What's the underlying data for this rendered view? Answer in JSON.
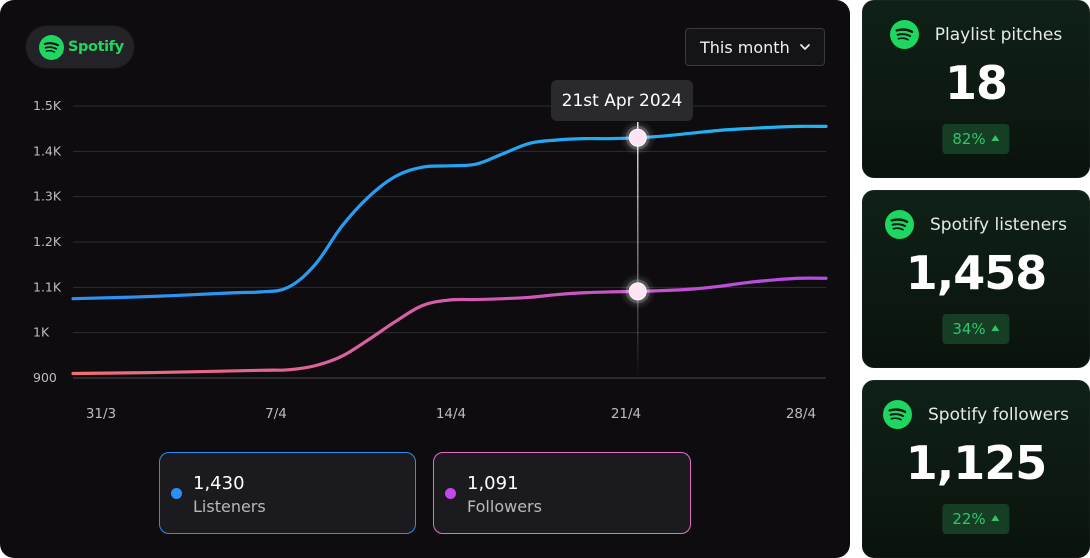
{
  "brand": {
    "name": "Spotify",
    "color": "#1ed760",
    "icon": "spotify-logo-icon"
  },
  "period_select": {
    "value": "This month",
    "icon": "chevron-down-icon"
  },
  "tooltip": {
    "label": "21st Apr 2024"
  },
  "colors": {
    "listeners_start": "#2e8ff2",
    "listeners_end": "#1fb6f2",
    "followers_start": "#f16f74",
    "followers_end": "#b64ae8",
    "badge_text": "#2fc56a"
  },
  "legend": [
    {
      "value": "1,430",
      "name": "Listeners",
      "dot_color": "#2e8ff2"
    },
    {
      "value": "1,091",
      "name": "Followers",
      "dot_color": "#c04ae8"
    }
  ],
  "stats": [
    {
      "title": "Playlist pitches",
      "value": "18",
      "change": "82%",
      "trend": "up"
    },
    {
      "title": "Spotify listeners",
      "value": "1,458",
      "change": "34%",
      "trend": "up"
    },
    {
      "title": "Spotify followers",
      "value": "1,125",
      "change": "22%",
      "trend": "up"
    }
  ],
  "chart_data": {
    "type": "line",
    "x_tick_labels": [
      "31/3",
      "7/4",
      "14/4",
      "21/4",
      "28/4"
    ],
    "y_tick_labels": [
      "1.5K",
      "1.4K",
      "1.3K",
      "1.2K",
      "1.1K",
      "1K",
      "900"
    ],
    "ylim": [
      900,
      1500
    ],
    "grid": true,
    "highlight_x": 21,
    "series": [
      {
        "name": "Listeners",
        "x": [
          0,
          3,
          6,
          7,
          8,
          9,
          10,
          11,
          12,
          13,
          14,
          15,
          16,
          17,
          18,
          19,
          20,
          21,
          22,
          23,
          24,
          25,
          26,
          27,
          28
        ],
        "y": [
          1075,
          1080,
          1088,
          1090,
          1100,
          1150,
          1235,
          1300,
          1345,
          1365,
          1368,
          1372,
          1395,
          1418,
          1425,
          1428,
          1428,
          1430,
          1434,
          1440,
          1446,
          1450,
          1453,
          1455,
          1455
        ]
      },
      {
        "name": "Followers",
        "x": [
          0,
          3,
          7,
          8,
          9,
          10,
          11,
          12,
          13,
          14,
          15,
          16,
          17,
          18,
          19,
          20,
          21,
          22,
          23,
          24,
          25,
          26,
          27,
          28
        ],
        "y": [
          910,
          912,
          917,
          918,
          927,
          948,
          985,
          1025,
          1060,
          1072,
          1073,
          1075,
          1078,
          1084,
          1088,
          1090,
          1091,
          1093,
          1096,
          1102,
          1110,
          1116,
          1120,
          1120
        ]
      }
    ]
  }
}
